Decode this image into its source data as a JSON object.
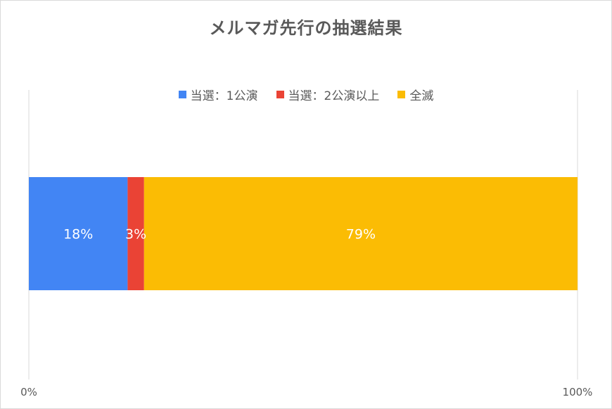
{
  "chart_data": {
    "type": "bar",
    "orientation": "horizontal",
    "stacked": "percent",
    "title": "メルマガ先行の抽選結果",
    "legend_position": "top",
    "series": [
      {
        "name": "当選：1公演",
        "value": 18,
        "label": "18%",
        "color": "#4285F4"
      },
      {
        "name": "当選：2公演以上",
        "value": 3,
        "label": "3%",
        "color": "#EA4335"
      },
      {
        "name": "全滅",
        "value": 79,
        "label": "79%",
        "color": "#FBBC04"
      }
    ],
    "xlim": [
      0,
      100
    ],
    "x_ticks": [
      "0%",
      "100%"
    ],
    "grid": true
  }
}
